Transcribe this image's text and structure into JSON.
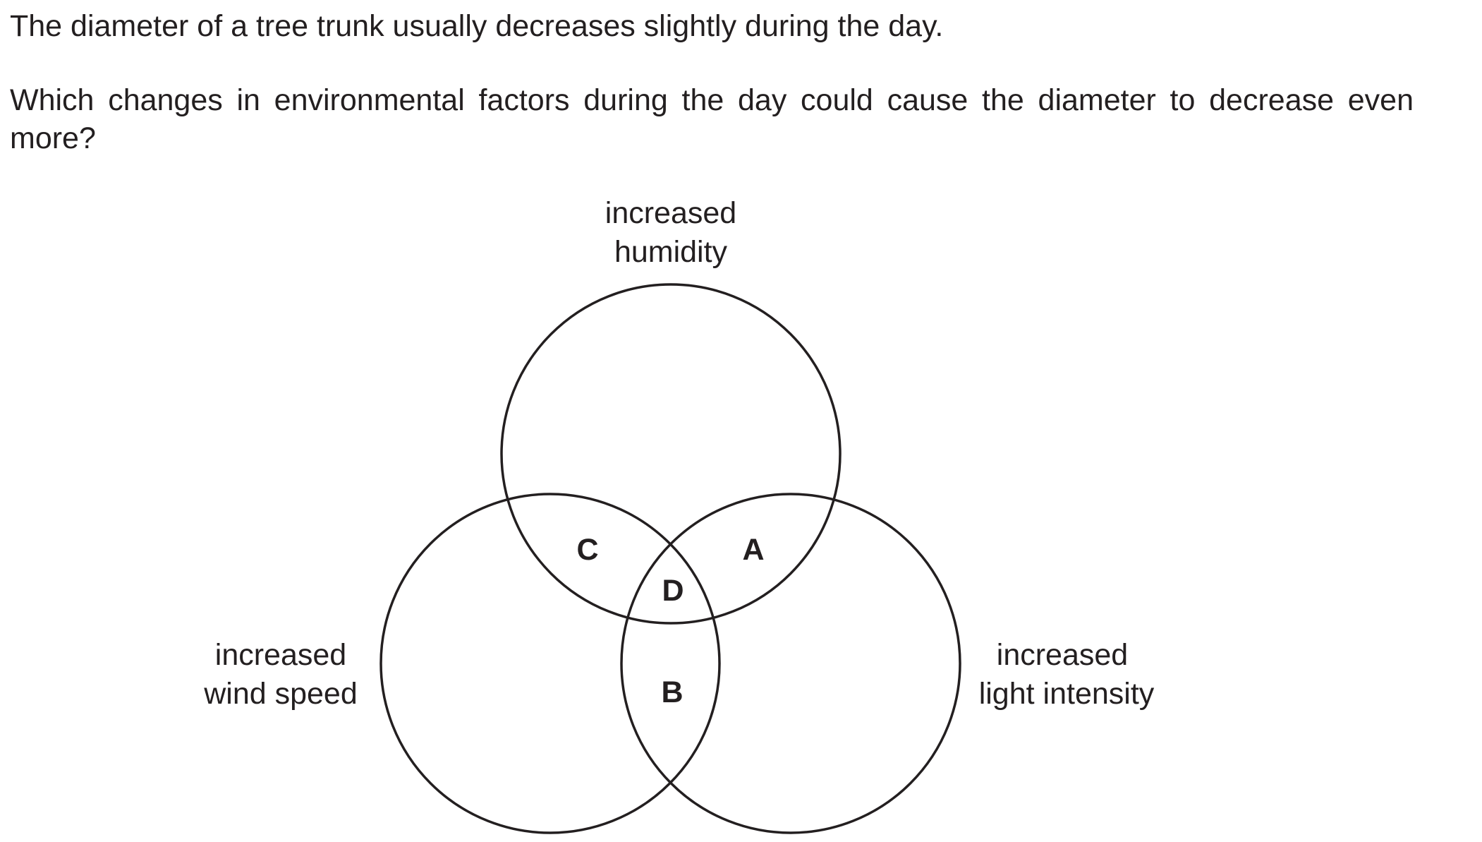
{
  "question": {
    "statement": "The diameter of a tree trunk usually decreases slightly during the day.",
    "prompt": "Which changes in environmental factors during the day could cause the diameter to decrease even more?"
  },
  "diagram": {
    "sets": {
      "humidity": {
        "line1": "increased",
        "line2": "humidity"
      },
      "wind": {
        "line1": "increased",
        "line2": "wind speed"
      },
      "light": {
        "line1": "increased",
        "line2": "light intensity"
      }
    },
    "regions": {
      "humidity_light": "A",
      "wind_light": "B",
      "humidity_wind": "C",
      "all_three": "D"
    }
  }
}
